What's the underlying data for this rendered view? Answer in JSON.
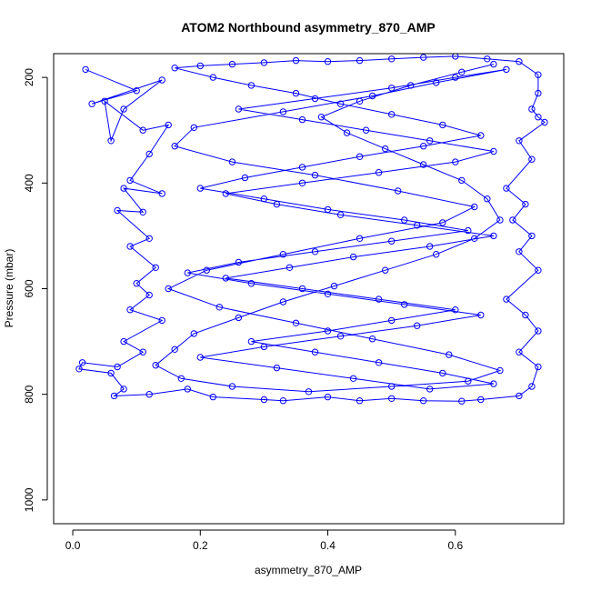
{
  "chart_data": {
    "type": "scatter",
    "title": "ATOM2 Northbound asymmetry_870_AMP",
    "xlabel": "asymmetry_870_AMP",
    "ylabel": "Pressure (mbar)",
    "xlim": [
      -0.03,
      0.77
    ],
    "ylim": [
      1045,
      155
    ],
    "y_reversed": true,
    "x_ticks": [
      0.0,
      0.2,
      0.4,
      0.6
    ],
    "x_tick_labels": [
      "0.0",
      "0.2",
      "0.4",
      "0.6"
    ],
    "y_ticks": [
      200,
      400,
      600,
      800,
      1000
    ],
    "y_tick_labels": [
      "200",
      "400",
      "600",
      "800",
      "1000"
    ],
    "series_color": "#0000ff",
    "marker": "open-circle",
    "connected": true,
    "grid": false,
    "series": [
      {
        "points": [
          [
            0.02,
            185
          ],
          [
            0.1,
            225
          ],
          [
            0.03,
            250
          ],
          [
            0.14,
            205
          ],
          [
            0.08,
            260
          ],
          [
            0.06,
            320
          ],
          [
            0.05,
            245
          ],
          [
            0.11,
            300
          ],
          [
            0.15,
            290
          ],
          [
            0.12,
            345
          ],
          [
            0.09,
            395
          ],
          [
            0.14,
            420
          ],
          [
            0.08,
            410
          ],
          [
            0.11,
            455
          ],
          [
            0.07,
            452
          ],
          [
            0.12,
            505
          ],
          [
            0.09,
            520
          ],
          [
            0.13,
            560
          ],
          [
            0.1,
            590
          ],
          [
            0.12,
            612
          ],
          [
            0.09,
            640
          ],
          [
            0.14,
            660
          ],
          [
            0.08,
            700
          ],
          [
            0.11,
            720
          ],
          [
            0.07,
            748
          ],
          [
            0.015,
            740
          ],
          [
            0.01,
            752
          ],
          [
            0.06,
            760
          ],
          [
            0.08,
            790
          ],
          [
            0.065,
            803
          ],
          [
            0.12,
            800
          ],
          [
            0.18,
            790
          ],
          [
            0.22,
            805
          ],
          [
            0.3,
            810
          ],
          [
            0.33,
            812
          ],
          [
            0.4,
            805
          ],
          [
            0.45,
            812
          ],
          [
            0.5,
            808
          ],
          [
            0.55,
            812
          ],
          [
            0.61,
            813
          ],
          [
            0.64,
            810
          ],
          [
            0.7,
            803
          ],
          [
            0.72,
            785
          ],
          [
            0.73,
            748
          ],
          [
            0.7,
            720
          ],
          [
            0.73,
            680
          ],
          [
            0.71,
            650
          ],
          [
            0.68,
            620
          ],
          [
            0.73,
            565
          ],
          [
            0.7,
            530
          ],
          [
            0.72,
            500
          ],
          [
            0.69,
            470
          ],
          [
            0.71,
            440
          ],
          [
            0.68,
            410
          ],
          [
            0.72,
            355
          ],
          [
            0.7,
            320
          ],
          [
            0.74,
            285
          ],
          [
            0.73,
            275
          ],
          [
            0.72,
            260
          ],
          [
            0.73,
            230
          ],
          [
            0.73,
            195
          ],
          [
            0.7,
            170
          ],
          [
            0.65,
            165
          ],
          [
            0.6,
            160
          ],
          [
            0.55,
            162
          ],
          [
            0.5,
            165
          ],
          [
            0.45,
            168
          ],
          [
            0.4,
            170
          ],
          [
            0.35,
            168
          ],
          [
            0.3,
            172
          ],
          [
            0.25,
            175
          ],
          [
            0.2,
            178
          ],
          [
            0.16,
            182
          ],
          [
            0.22,
            200
          ],
          [
            0.28,
            215
          ],
          [
            0.35,
            230
          ],
          [
            0.42,
            250
          ],
          [
            0.5,
            270
          ],
          [
            0.58,
            290
          ],
          [
            0.64,
            310
          ],
          [
            0.55,
            330
          ],
          [
            0.45,
            350
          ],
          [
            0.36,
            370
          ],
          [
            0.27,
            390
          ],
          [
            0.2,
            410
          ],
          [
            0.3,
            430
          ],
          [
            0.4,
            450
          ],
          [
            0.52,
            470
          ],
          [
            0.62,
            490
          ],
          [
            0.5,
            510
          ],
          [
            0.38,
            530
          ],
          [
            0.26,
            550
          ],
          [
            0.18,
            570
          ],
          [
            0.28,
            590
          ],
          [
            0.4,
            610
          ],
          [
            0.52,
            630
          ],
          [
            0.64,
            650
          ],
          [
            0.54,
            670
          ],
          [
            0.42,
            690
          ],
          [
            0.3,
            710
          ],
          [
            0.2,
            730
          ],
          [
            0.32,
            750
          ],
          [
            0.44,
            770
          ],
          [
            0.56,
            790
          ],
          [
            0.66,
            780
          ],
          [
            0.58,
            760
          ],
          [
            0.48,
            740
          ],
          [
            0.38,
            720
          ],
          [
            0.28,
            700
          ],
          [
            0.4,
            680
          ],
          [
            0.5,
            660
          ],
          [
            0.6,
            640
          ],
          [
            0.48,
            620
          ],
          [
            0.36,
            600
          ],
          [
            0.24,
            580
          ],
          [
            0.34,
            560
          ],
          [
            0.44,
            540
          ],
          [
            0.56,
            520
          ],
          [
            0.66,
            500
          ],
          [
            0.54,
            480
          ],
          [
            0.42,
            460
          ],
          [
            0.32,
            440
          ],
          [
            0.24,
            420
          ],
          [
            0.36,
            400
          ],
          [
            0.48,
            380
          ],
          [
            0.6,
            360
          ],
          [
            0.66,
            340
          ],
          [
            0.56,
            320
          ],
          [
            0.46,
            300
          ],
          [
            0.36,
            280
          ],
          [
            0.26,
            260
          ],
          [
            0.38,
            240
          ],
          [
            0.5,
            220
          ],
          [
            0.6,
            200
          ],
          [
            0.68,
            185
          ],
          [
            0.57,
            210
          ],
          [
            0.47,
            235
          ],
          [
            0.33,
            265
          ],
          [
            0.19,
            295
          ],
          [
            0.16,
            330
          ],
          [
            0.25,
            360
          ],
          [
            0.38,
            385
          ],
          [
            0.51,
            415
          ],
          [
            0.63,
            445
          ],
          [
            0.58,
            475
          ],
          [
            0.45,
            505
          ],
          [
            0.33,
            535
          ],
          [
            0.21,
            565
          ],
          [
            0.15,
            600
          ],
          [
            0.23,
            635
          ],
          [
            0.35,
            665
          ],
          [
            0.47,
            695
          ],
          [
            0.59,
            725
          ],
          [
            0.67,
            755
          ],
          [
            0.62,
            775
          ],
          [
            0.5,
            785
          ],
          [
            0.37,
            795
          ],
          [
            0.25,
            785
          ],
          [
            0.17,
            770
          ],
          [
            0.13,
            745
          ],
          [
            0.16,
            715
          ],
          [
            0.19,
            685
          ],
          [
            0.26,
            655
          ],
          [
            0.33,
            625
          ],
          [
            0.41,
            595
          ],
          [
            0.49,
            565
          ],
          [
            0.57,
            535
          ],
          [
            0.63,
            505
          ],
          [
            0.67,
            470
          ],
          [
            0.65,
            430
          ],
          [
            0.61,
            395
          ],
          [
            0.55,
            365
          ],
          [
            0.49,
            335
          ],
          [
            0.43,
            305
          ],
          [
            0.39,
            275
          ],
          [
            0.45,
            245
          ],
          [
            0.53,
            215
          ],
          [
            0.61,
            190
          ],
          [
            0.66,
            175
          ]
        ]
      }
    ]
  }
}
